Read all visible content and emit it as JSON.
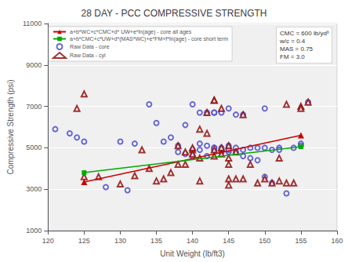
{
  "chart_data": {
    "type": "scatter",
    "title": "28 DAY - PCC COMPRESSIVE STRENGTH",
    "xlabel": "Unit Weight (lb/ft3)",
    "ylabel": "Compressive Strength (psi)",
    "xlim": [
      120,
      160
    ],
    "ylim": [
      1000,
      11000
    ],
    "xticks": [
      120,
      125,
      130,
      135,
      140,
      145,
      150,
      155,
      160
    ],
    "yticks": [
      1000,
      3000,
      5000,
      7000,
      9000,
      11000
    ],
    "grid": "y",
    "legend": "upper left",
    "annotation": "CMC = 600 lb/yd³\nw/c = 0.4\nMAS = 0.75\nFM = 3.0",
    "series": [
      {
        "name": "a+b*WC+c*CMC+d* UW+e*ln(age) - core all ages",
        "type": "line",
        "color": "#cc0000",
        "marker": "triangle",
        "x": [
          125,
          155
        ],
        "values": [
          3350,
          5600
        ]
      },
      {
        "name": "a+b*CMC+c*UW+d*(MAS*WC)+e*FM+f*ln(age) - core short term",
        "type": "line",
        "color": "#00aa00",
        "marker": "square",
        "x": [
          125,
          155
        ],
        "values": [
          3800,
          5050
        ]
      },
      {
        "name": "Raw Data - core",
        "type": "scatter",
        "color": "#4444cc",
        "marker": "circle",
        "x": [
          121,
          123,
          124,
          125,
          128,
          130,
          131,
          132,
          134,
          135,
          136,
          137,
          138,
          138,
          139,
          139,
          140,
          140,
          140,
          141,
          141,
          141,
          142,
          142,
          142,
          143,
          143,
          143,
          143,
          143,
          144,
          144,
          144,
          144,
          145,
          145,
          145,
          145,
          146,
          146,
          146,
          147,
          147,
          147,
          148,
          148,
          149,
          149,
          150,
          150,
          150,
          151,
          151,
          152,
          152,
          153,
          154,
          155,
          155,
          156
        ],
        "values": [
          5900,
          5700,
          5500,
          5300,
          3100,
          5300,
          2950,
          5200,
          7100,
          6200,
          5300,
          5500,
          4800,
          5100,
          4700,
          6100,
          7100,
          4900,
          4600,
          5200,
          4900,
          6700,
          5100,
          4600,
          6700,
          5000,
          4900,
          6700,
          6700,
          5000,
          6700,
          4800,
          4900,
          5000,
          4800,
          6900,
          5100,
          4900,
          5000,
          6600,
          4800,
          6600,
          4600,
          4900,
          5000,
          4500,
          5000,
          4400,
          5000,
          3600,
          6900,
          3300,
          4900,
          5000,
          4900,
          2800,
          5000,
          5200,
          5100,
          7200
        ]
      },
      {
        "name": "Raw Data - cyl",
        "type": "scatter",
        "color": "#8b0000",
        "marker": "triangle",
        "x": [
          124,
          125,
          125,
          127,
          130,
          132,
          133,
          134,
          135,
          136,
          137,
          138,
          138,
          139,
          139,
          140,
          140,
          140,
          141,
          141,
          141,
          142,
          142,
          143,
          143,
          143,
          143,
          144,
          144,
          144,
          145,
          145,
          145,
          145,
          145,
          146,
          146,
          147,
          147,
          148,
          149,
          150,
          151,
          152,
          152,
          153,
          153,
          154,
          155,
          155,
          156
        ],
        "values": [
          6900,
          3600,
          7600,
          3600,
          3250,
          3650,
          4900,
          4000,
          3400,
          3500,
          3800,
          5100,
          4200,
          4800,
          4200,
          4900,
          4700,
          5000,
          4500,
          3400,
          5900,
          6700,
          5700,
          4900,
          4600,
          7300,
          7300,
          5000,
          4700,
          6900,
          5100,
          4500,
          4200,
          3500,
          3200,
          4800,
          3500,
          3500,
          6600,
          4200,
          3300,
          3500,
          3300,
          3400,
          4500,
          3300,
          7100,
          3300,
          7000,
          6900,
          7200
        ]
      }
    ]
  }
}
